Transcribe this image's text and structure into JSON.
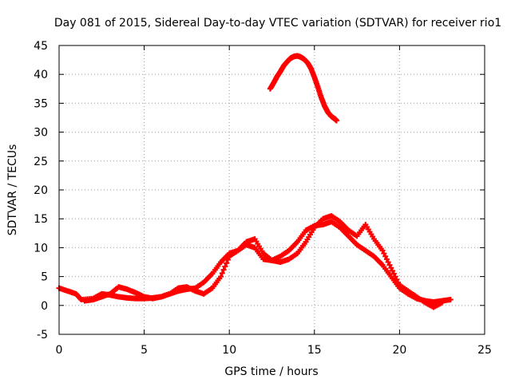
{
  "chart_data": {
    "type": "scatter",
    "title": "Day 081 of 2015, Sidereal Day-to-day VTEC variation (SDTVAR) for receiver rio1",
    "xlabel": "GPS time / hours",
    "ylabel": "SDTVAR / TECUs",
    "xlim": [
      0,
      25
    ],
    "ylim": [
      -5,
      45
    ],
    "xticks": [
      0,
      5,
      10,
      15,
      20,
      25
    ],
    "yticks": [
      -5,
      0,
      5,
      10,
      15,
      20,
      25,
      30,
      35,
      40,
      45
    ],
    "grid": true,
    "marker_color": "#ff0000",
    "series": [
      {
        "name": "main-band-1",
        "x": [
          0.0,
          0.5,
          1.0,
          1.3,
          2.0,
          2.5,
          3.0,
          3.5,
          4.0,
          4.5,
          5.0,
          5.5,
          6.0,
          6.5,
          7.0,
          7.5,
          8.0,
          8.5,
          9.0,
          9.5,
          10.0,
          10.5,
          11.0,
          11.5,
          12.0,
          12.5,
          13.0,
          13.5,
          14.0,
          14.5,
          15.0,
          15.5,
          16.0,
          16.5,
          17.0,
          17.5,
          18.0,
          18.5,
          19.0,
          19.5,
          20.0,
          20.5,
          21.0,
          21.5,
          22.0,
          22.5,
          23.0
        ],
        "y": [
          3.0,
          2.5,
          2.0,
          1.0,
          1.2,
          2.0,
          1.8,
          1.5,
          1.3,
          1.2,
          1.2,
          1.3,
          1.5,
          2.0,
          2.5,
          2.8,
          3.0,
          4.0,
          5.5,
          7.5,
          9.0,
          9.5,
          10.5,
          10.0,
          8.0,
          7.8,
          8.5,
          9.5,
          11.0,
          13.0,
          13.8,
          14.0,
          14.5,
          13.5,
          12.0,
          10.5,
          9.5,
          8.5,
          7.0,
          5.0,
          3.0,
          2.0,
          1.2,
          0.8,
          0.6,
          0.8,
          1.0
        ]
      },
      {
        "name": "main-band-2",
        "x": [
          1.5,
          2.0,
          2.5,
          3.0,
          3.5,
          4.0,
          4.5,
          5.0,
          5.5,
          6.0,
          6.5,
          7.0,
          7.5,
          8.0,
          8.5,
          9.0,
          9.5,
          10.0,
          10.5,
          11.0,
          11.5,
          12.0,
          12.5,
          13.0,
          13.5,
          14.0,
          14.5,
          15.0,
          15.5,
          16.0,
          16.5,
          17.0,
          17.5,
          18.0,
          18.5,
          19.0,
          19.5,
          20.0,
          20.5,
          21.0,
          21.5,
          22.0,
          22.5
        ],
        "y": [
          0.8,
          1.0,
          1.5,
          2.0,
          3.2,
          2.8,
          2.2,
          1.5,
          1.2,
          1.5,
          2.0,
          3.0,
          3.2,
          2.5,
          2.0,
          3.0,
          5.0,
          8.5,
          9.5,
          11.0,
          11.5,
          9.0,
          7.8,
          7.5,
          8.0,
          9.0,
          11.0,
          13.5,
          15.0,
          15.5,
          14.5,
          13.0,
          12.0,
          14.0,
          11.5,
          9.5,
          6.5,
          3.5,
          2.5,
          1.5,
          0.5,
          -0.3,
          0.5
        ]
      },
      {
        "name": "upper-arc",
        "x": [
          12.4,
          12.6,
          12.8,
          13.0,
          13.2,
          13.4,
          13.6,
          13.8,
          14.0,
          14.2,
          14.4,
          14.6,
          14.8,
          15.0,
          15.2,
          15.4,
          15.6,
          15.8,
          16.0,
          16.2,
          16.3
        ],
        "y": [
          37.5,
          38.5,
          39.6,
          40.5,
          41.5,
          42.2,
          42.8,
          43.1,
          43.2,
          43.0,
          42.6,
          42.0,
          41.0,
          39.5,
          37.8,
          36.0,
          34.5,
          33.4,
          32.7,
          32.3,
          32.0
        ]
      }
    ]
  }
}
